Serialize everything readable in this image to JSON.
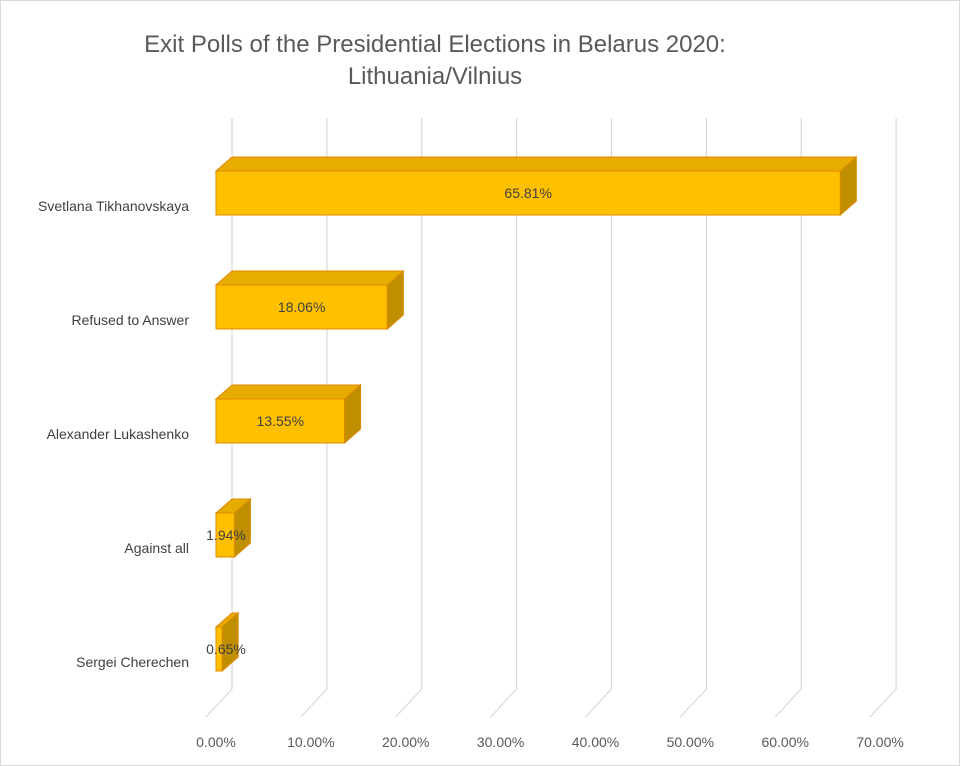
{
  "chart_data": {
    "type": "bar",
    "orientation": "horizontal",
    "style": "3d",
    "title": "Exit Polls of the Presidential Elections in Belarus 2020:",
    "subtitle": "Lithuania/Vilnius",
    "categories": [
      "Svetlana Tikhanovskaya",
      "Refused to Answer",
      "Alexander Lukashenko",
      "Against all",
      "Sergei Cherechen"
    ],
    "values": [
      65.81,
      18.06,
      13.55,
      1.94,
      0.65
    ],
    "data_labels": [
      "65.81%",
      "18.06%",
      "13.55%",
      "1.94%",
      "0.65%"
    ],
    "xlim": [
      0,
      70
    ],
    "x_ticks": [
      0,
      10,
      20,
      30,
      40,
      50,
      60,
      70
    ],
    "x_tick_labels": [
      "0.00%",
      "10.00%",
      "20.00%",
      "30.00%",
      "40.00%",
      "50.00%",
      "60.00%",
      "70.00%"
    ],
    "xlabel": "",
    "ylabel": "",
    "grid": true,
    "legend": "none",
    "colors": {
      "bar_front": "#ffc000",
      "bar_top": "#e6ac00",
      "bar_side": "#bf8f00",
      "bar_edge": "#e08a00",
      "grid": "#d9d9d9"
    }
  }
}
